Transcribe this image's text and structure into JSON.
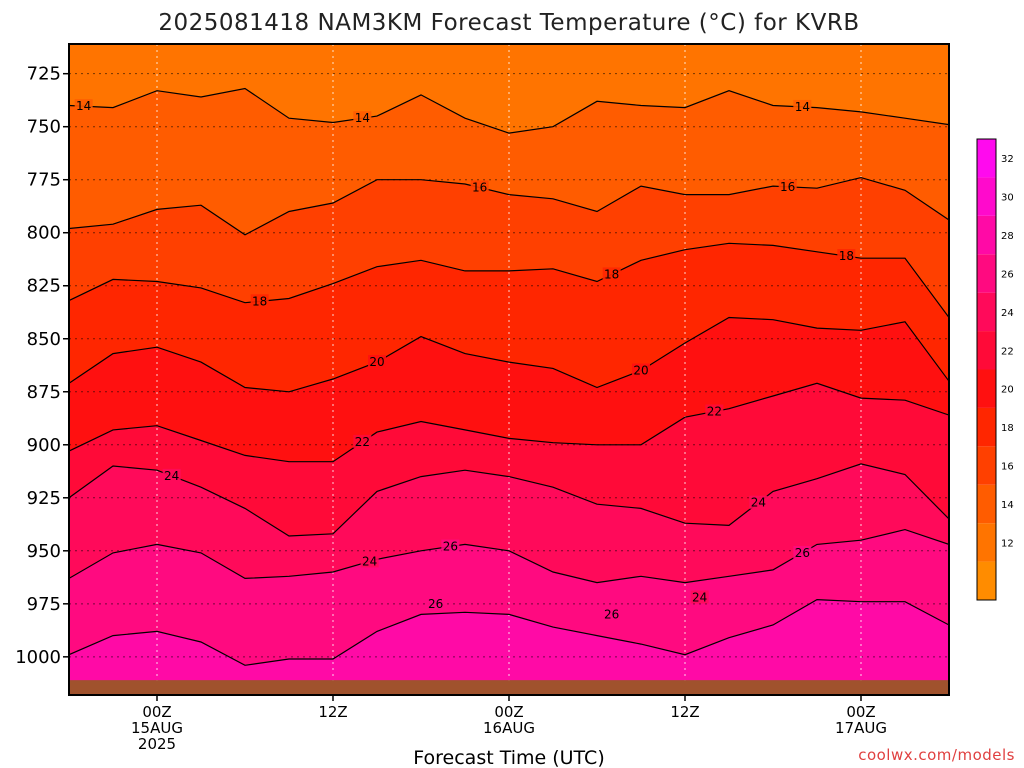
{
  "chart_data": {
    "type": "heatmap",
    "title": "2025081418 NAM3KM Forecast Temperature (°C) for KVRB",
    "xlabel": "Forecast Time (UTC)",
    "ylabel": "",
    "credit": "coolwx.com/models",
    "x_unit": "hours since 2025-08-14 18Z",
    "x_range": [
      0,
      60
    ],
    "x_ticks": [
      {
        "hour": 6,
        "lines": [
          "00Z",
          "15AUG",
          "2025"
        ]
      },
      {
        "hour": 18,
        "lines": [
          "12Z"
        ]
      },
      {
        "hour": 30,
        "lines": [
          "00Z",
          "16AUG"
        ]
      },
      {
        "hour": 42,
        "lines": [
          "12Z"
        ]
      },
      {
        "hour": 54,
        "lines": [
          "00Z",
          "17AUG"
        ]
      }
    ],
    "y_unit": "hPa",
    "y_range": [
      1018,
      711
    ],
    "y_ticks": [
      725,
      750,
      775,
      800,
      825,
      850,
      875,
      900,
      925,
      950,
      975,
      1000
    ],
    "grid": true,
    "colorbar": {
      "levels": [
        10,
        12,
        14,
        16,
        18,
        20,
        22,
        24,
        26,
        28,
        30,
        32,
        34
      ],
      "labels": [
        12,
        14,
        16,
        18,
        20,
        22,
        24,
        26,
        28,
        30,
        32
      ],
      "colors": [
        "#ff8c00",
        "#ff7400",
        "#ff5c00",
        "#ff4000",
        "#ff2600",
        "#ff1010",
        "#ff0a38",
        "#ff0a5a",
        "#ff0a80",
        "#ff0aa6",
        "#ff0acc",
        "#ff0aee"
      ],
      "placement": "right"
    },
    "contours": [
      {
        "level": 14,
        "label": "14",
        "pressure": [
          740,
          741,
          733,
          736,
          732,
          746,
          748,
          745,
          735,
          746,
          753,
          750,
          738,
          740,
          741,
          733,
          740,
          741,
          743,
          746,
          749
        ],
        "label_hours": [
          1,
          20,
          50
        ]
      },
      {
        "level": 16,
        "label": "16",
        "pressure": [
          798,
          796,
          789,
          787,
          801,
          790,
          786,
          775,
          775,
          777,
          782,
          784,
          790,
          778,
          782,
          782,
          778,
          779,
          774,
          780,
          794
        ],
        "label_hours": [
          28,
          49
        ]
      },
      {
        "level": 18,
        "label": "18",
        "pressure": [
          832,
          822,
          823,
          826,
          833,
          831,
          824,
          816,
          813,
          818,
          818,
          817,
          823,
          813,
          808,
          805,
          806,
          809,
          812,
          812,
          840
        ],
        "label_hours": [
          13,
          37,
          53
        ]
      },
      {
        "level": 20,
        "label": "20",
        "pressure": [
          871,
          857,
          854,
          861,
          873,
          875,
          869,
          861,
          849,
          857,
          861,
          864,
          873,
          865,
          852,
          840,
          841,
          845,
          846,
          842,
          870
        ],
        "label_hours": [
          21,
          39
        ]
      },
      {
        "level": 22,
        "label": "22",
        "pressure": [
          903,
          893,
          891,
          898,
          905,
          908,
          908,
          894,
          889,
          893,
          897,
          899,
          900,
          900,
          887,
          883,
          877,
          871,
          878,
          879,
          886
        ],
        "label_hours": [
          20,
          44
        ]
      },
      {
        "level": 24,
        "label": "24",
        "pressure": [
          925,
          910,
          912,
          920,
          930,
          943,
          942,
          922,
          915,
          912,
          915,
          920,
          928,
          930,
          937,
          938,
          922,
          916,
          909,
          914,
          935
        ],
        "label_hours": [
          7,
          47
        ]
      },
      {
        "level": 26,
        "label": "26",
        "pressure": [
          963,
          951,
          947,
          951,
          963,
          962,
          960,
          954,
          950,
          947,
          950,
          960,
          965,
          962,
          965,
          962,
          959,
          947,
          945,
          940,
          947
        ],
        "label_hours": [
          26,
          50
        ]
      },
      {
        "level": 28,
        "label": "28",
        "pressure": [
          999,
          990,
          988,
          993,
          1004,
          1001,
          1001,
          988,
          980,
          979,
          980,
          986,
          990,
          994,
          999,
          991,
          985,
          973,
          974,
          974,
          985
        ],
        "label_hours": []
      }
    ],
    "annotations": [
      {
        "text": "24",
        "hour": 20.5,
        "pressure": 955
      },
      {
        "text": "26",
        "hour": 37,
        "pressure": 980
      },
      {
        "text": "24",
        "hour": 43,
        "pressure": 972
      },
      {
        "text": "26",
        "hour": 25,
        "pressure": 975
      }
    ],
    "ground_pressure": 1011
  }
}
